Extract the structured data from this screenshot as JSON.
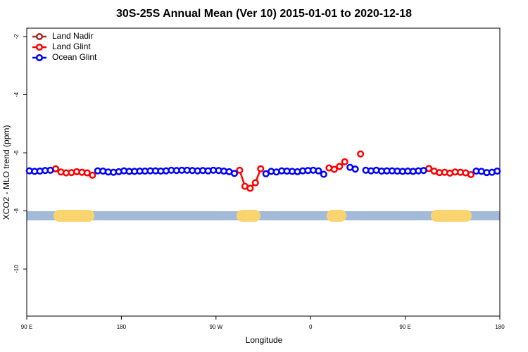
{
  "chart_data": {
    "type": "line",
    "title": "30S-25S Annual Mean (Ver 10)   2015-01-01 to 2020-12-18",
    "x_label": "Longitude",
    "y_label": "XCO2 - MLO trend (ppm)",
    "xlim": [
      90,
      540
    ],
    "ylim": [
      -11.62,
      -1.71
    ],
    "xticks": [
      {
        "value": 90,
        "label": "90 E"
      },
      180,
      {
        "value": 270,
        "label": "90 W"
      },
      {
        "value": 360,
        "label": "0"
      },
      {
        "value": 450,
        "label": "90 E"
      },
      {
        "value": 540,
        "label": "180"
      }
    ],
    "yticks": [
      -2,
      -4,
      -6,
      -8,
      -10
    ],
    "legend": "top-left",
    "x": [
      92.5,
      97.5,
      102.5,
      107.5,
      112.5,
      117.5,
      122.5,
      127.5,
      132.5,
      137.5,
      142.5,
      147.5,
      152.5,
      157.5,
      162.5,
      167.5,
      172.5,
      177.5,
      182.5,
      187.5,
      192.5,
      197.5,
      202.5,
      207.5,
      212.5,
      217.5,
      222.5,
      227.5,
      232.5,
      237.5,
      242.5,
      247.5,
      252.5,
      257.5,
      262.5,
      267.5,
      272.5,
      277.5,
      282.5,
      287.5,
      292.5,
      297.5,
      302.5,
      307.5,
      312.5,
      317.5,
      322.5,
      327.5,
      332.5,
      337.5,
      342.5,
      347.5,
      352.5,
      357.5,
      362.5,
      367.5,
      372.5,
      377.5,
      382.5,
      387.5,
      392.5,
      397.5,
      402.5,
      407.5,
      412.5,
      417.5,
      422.5,
      427.5,
      432.5,
      437.5,
      442.5,
      447.5,
      452.5,
      457.5,
      462.5,
      467.5,
      472.5,
      477.5,
      482.5,
      487.5,
      492.5,
      497.5,
      502.5,
      507.5,
      512.5,
      517.5,
      522.5,
      527.5,
      532.5,
      537.5
    ],
    "series": [
      {
        "name": "Land Nadir",
        "color": "#a52a2a",
        "values": [
          null,
          null,
          null,
          null,
          null,
          null,
          null,
          null,
          null,
          null,
          null,
          null,
          null,
          null,
          null,
          null,
          null,
          null,
          null,
          null,
          null,
          null,
          null,
          null,
          null,
          null,
          null,
          null,
          null,
          null,
          null,
          null,
          null,
          null,
          null,
          null,
          null,
          null,
          null,
          null,
          null,
          null,
          null,
          null,
          null,
          null,
          null,
          null,
          null,
          null,
          null,
          null,
          null,
          null,
          null,
          null,
          null,
          null,
          null,
          null,
          null,
          null,
          null,
          null,
          null,
          null,
          null,
          null,
          null,
          null,
          null,
          null,
          null,
          null,
          null,
          null,
          null,
          null,
          null,
          null,
          null,
          null,
          null,
          null,
          null,
          null,
          null,
          null,
          null,
          null
        ]
      },
      {
        "name": "Land Glint",
        "color": "#ff0000",
        "values": [
          null,
          null,
          null,
          null,
          null,
          -6.55,
          -6.66,
          -6.69,
          -6.68,
          -6.65,
          -6.67,
          -6.69,
          -6.77,
          null,
          null,
          null,
          null,
          null,
          null,
          null,
          null,
          null,
          null,
          null,
          null,
          null,
          null,
          null,
          null,
          null,
          null,
          null,
          null,
          null,
          null,
          null,
          null,
          null,
          null,
          null,
          -6.6,
          -7.15,
          -7.22,
          -7.03,
          -6.55,
          null,
          null,
          null,
          null,
          null,
          null,
          null,
          null,
          null,
          null,
          null,
          null,
          -6.52,
          -6.57,
          -6.47,
          -6.31,
          null,
          null,
          -6.04,
          null,
          null,
          null,
          null,
          null,
          null,
          null,
          null,
          null,
          null,
          null,
          null,
          -6.54,
          -6.63,
          -6.68,
          -6.67,
          -6.7,
          -6.66,
          -6.67,
          -6.69,
          -6.75,
          null,
          null,
          null,
          null,
          null
        ]
      },
      {
        "name": "Ocean Glint",
        "color": "#0000ff",
        "values": [
          -6.62,
          -6.64,
          -6.63,
          -6.61,
          -6.6,
          null,
          null,
          null,
          null,
          null,
          null,
          null,
          null,
          -6.62,
          -6.63,
          -6.66,
          -6.67,
          -6.65,
          -6.62,
          -6.64,
          -6.64,
          -6.63,
          -6.63,
          -6.62,
          -6.62,
          -6.63,
          -6.62,
          -6.6,
          -6.61,
          -6.6,
          -6.6,
          -6.61,
          -6.62,
          -6.61,
          -6.62,
          -6.6,
          -6.61,
          -6.63,
          -6.65,
          -6.71,
          null,
          null,
          null,
          null,
          null,
          -6.72,
          -6.64,
          -6.66,
          -6.62,
          -6.63,
          -6.64,
          -6.65,
          -6.62,
          -6.61,
          -6.6,
          -6.62,
          -6.74,
          null,
          null,
          null,
          null,
          -6.5,
          -6.56,
          null,
          -6.6,
          -6.62,
          -6.6,
          -6.63,
          -6.62,
          -6.62,
          -6.63,
          -6.64,
          -6.63,
          -6.64,
          -6.62,
          -6.61,
          null,
          null,
          null,
          null,
          null,
          null,
          null,
          null,
          null,
          -6.63,
          -6.64,
          -6.68,
          -6.67,
          -6.63
        ]
      }
    ]
  }
}
